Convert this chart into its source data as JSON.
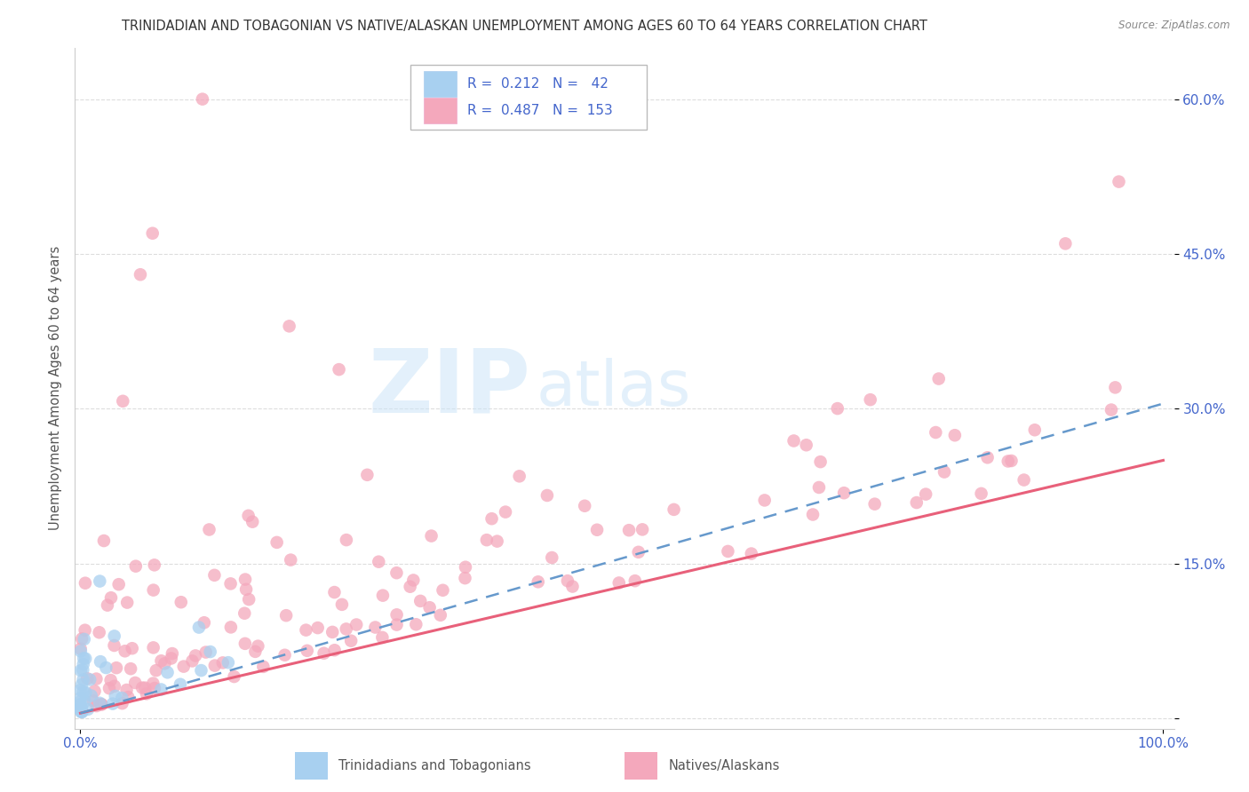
{
  "title": "TRINIDADIAN AND TOBAGONIAN VS NATIVE/ALASKAN UNEMPLOYMENT AMONG AGES 60 TO 64 YEARS CORRELATION CHART",
  "source": "Source: ZipAtlas.com",
  "ylabel": "Unemployment Among Ages 60 to 64 years",
  "blue_color": "#a8d0f0",
  "pink_color": "#f4a8bc",
  "blue_line_color": "#6699cc",
  "pink_line_color": "#e8607a",
  "watermark_color": "#ddeeff",
  "tick_color": "#4466cc",
  "grid_color": "#dddddd",
  "title_color": "#333333",
  "source_color": "#888888",
  "ylabel_color": "#555555",
  "legend_border": "#cccccc",
  "blue_intercept": 0.005,
  "blue_slope": 0.3,
  "pink_intercept": 0.005,
  "pink_slope": 0.245,
  "xlim_min": -0.005,
  "xlim_max": 1.01,
  "ylim_min": -0.01,
  "ylim_max": 0.65,
  "yticks": [
    0.0,
    0.15,
    0.3,
    0.45,
    0.6
  ],
  "ytick_labels": [
    "",
    "15.0%",
    "30.0%",
    "45.0%",
    "60.0%"
  ],
  "xtick_left": "0.0%",
  "xtick_right": "100.0%",
  "legend_r1": "R =  0.212",
  "legend_n1": "N =   42",
  "legend_r2": "R =  0.487",
  "legend_n2": "N =  153",
  "blue_N": 42,
  "pink_N": 153
}
